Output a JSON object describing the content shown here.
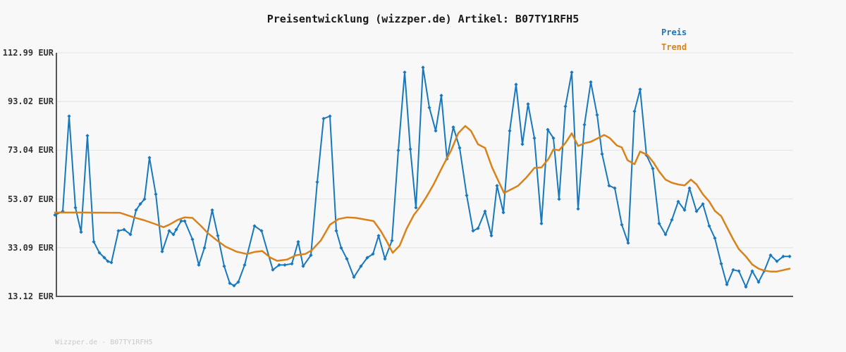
{
  "header": {
    "title": "Preisentwicklung (wizzper.de) Artikel: B07TY1RFH5"
  },
  "legend": {
    "preis": "Preis",
    "trend": "Trend"
  },
  "footer": {
    "watermark": "Wizzper.de - B07TY1RFH5"
  },
  "colors": {
    "preis": "#1878be",
    "trend": "#d9821a",
    "axis": "#58585a",
    "grid": "#e7e7e7",
    "legend_preis_text": "#1777c2",
    "legend_trend_text": "#d9821a"
  },
  "chart_data": {
    "type": "line",
    "title": "Preisentwicklung (wizzper.de) Artikel: B07TY1RFH5",
    "xlabel": "",
    "ylabel": "",
    "x_unit": "px (no x-axis labels shown)",
    "y_unit": "EUR",
    "ylim": [
      13.12,
      112.99
    ],
    "grid": true,
    "legend_position": "top-right",
    "yticks": [
      {
        "label": "112.99 EUR",
        "value": 112.99
      },
      {
        "label": "93.02 EUR",
        "value": 93.02
      },
      {
        "label": "73.04 EUR",
        "value": 73.04
      },
      {
        "label": "53.07 EUR",
        "value": 53.07
      },
      {
        "label": "33.09 EUR",
        "value": 33.09
      },
      {
        "label": "13.12 EUR",
        "value": 13.12
      }
    ],
    "series": [
      {
        "name": "Preis",
        "color": "#1878be",
        "markers": true,
        "points": [
          [
            78,
            46.5
          ],
          [
            89,
            48
          ],
          [
            98,
            87
          ],
          [
            107,
            49.5
          ],
          [
            115,
            39.5
          ],
          [
            124,
            79
          ],
          [
            133,
            35.5
          ],
          [
            141,
            31
          ],
          [
            148,
            29
          ],
          [
            153,
            27.5
          ],
          [
            158,
            27
          ],
          [
            168,
            40
          ],
          [
            176,
            40.5
          ],
          [
            185,
            38.5
          ],
          [
            193,
            48.5
          ],
          [
            199,
            51
          ],
          [
            205,
            53
          ],
          [
            212,
            70
          ],
          [
            221,
            55
          ],
          [
            230,
            31.5
          ],
          [
            240,
            40
          ],
          [
            246,
            38.5
          ],
          [
            250,
            40.5
          ],
          [
            257,
            44
          ],
          [
            262,
            44
          ],
          [
            273,
            36.5
          ],
          [
            282,
            26
          ],
          [
            290,
            33
          ],
          [
            301,
            48.5
          ],
          [
            309,
            38
          ],
          [
            318,
            25.5
          ],
          [
            326,
            18.5
          ],
          [
            332,
            17.5
          ],
          [
            338,
            19
          ],
          [
            347,
            26
          ],
          [
            361,
            42
          ],
          [
            371,
            40
          ],
          [
            387,
            24
          ],
          [
            396,
            26
          ],
          [
            404,
            26
          ],
          [
            414,
            26.5
          ],
          [
            423,
            35.5
          ],
          [
            430,
            25.5
          ],
          [
            441,
            30
          ],
          [
            450,
            60
          ],
          [
            459,
            86
          ],
          [
            468,
            87
          ],
          [
            477,
            40
          ],
          [
            484,
            33
          ],
          [
            492,
            28.5
          ],
          [
            502,
            21
          ],
          [
            512,
            25.5
          ],
          [
            521,
            29
          ],
          [
            529,
            30.5
          ],
          [
            537,
            38
          ],
          [
            546,
            28.5
          ],
          [
            556,
            36
          ],
          [
            565,
            73
          ],
          [
            574,
            105
          ],
          [
            582,
            73.5
          ],
          [
            590,
            49.5
          ],
          [
            600,
            107
          ],
          [
            609,
            90.5
          ],
          [
            618,
            81
          ],
          [
            626,
            95.5
          ],
          [
            634,
            69.5
          ],
          [
            643,
            82.5
          ],
          [
            652,
            74
          ],
          [
            662,
            54.5
          ],
          [
            671,
            40
          ],
          [
            678,
            41
          ],
          [
            688,
            48
          ],
          [
            697,
            38
          ],
          [
            705,
            58.5
          ],
          [
            714,
            47.5
          ],
          [
            723,
            81
          ],
          [
            732,
            100
          ],
          [
            741,
            75.5
          ],
          [
            749,
            92
          ],
          [
            758,
            78
          ],
          [
            768,
            43
          ],
          [
            777,
            81.5
          ],
          [
            785,
            78
          ],
          [
            793,
            53
          ],
          [
            802,
            91
          ],
          [
            811,
            105
          ],
          [
            820,
            49
          ],
          [
            829,
            83.5
          ],
          [
            838,
            101
          ],
          [
            847,
            87.5
          ],
          [
            854,
            71.5
          ],
          [
            864,
            58.5
          ],
          [
            872,
            57.5
          ],
          [
            882,
            42.5
          ],
          [
            891,
            35
          ],
          [
            900,
            89
          ],
          [
            908,
            98
          ],
          [
            917,
            71
          ],
          [
            926,
            65.5
          ],
          [
            935,
            43
          ],
          [
            944,
            38.5
          ],
          [
            953,
            44.5
          ],
          [
            962,
            52
          ],
          [
            971,
            48.5
          ],
          [
            978,
            57.5
          ],
          [
            988,
            48
          ],
          [
            997,
            51
          ],
          [
            1006,
            42
          ],
          [
            1014,
            37
          ],
          [
            1023,
            26.5
          ],
          [
            1031,
            18
          ],
          [
            1040,
            24
          ],
          [
            1048,
            23.5
          ],
          [
            1058,
            17
          ],
          [
            1067,
            23.5
          ],
          [
            1076,
            19
          ],
          [
            1084,
            23.5
          ],
          [
            1093,
            30
          ],
          [
            1102,
            27.5
          ],
          [
            1111,
            29.5
          ],
          [
            1120,
            29.5
          ]
        ]
      },
      {
        "name": "Trend",
        "color": "#d9821a",
        "markers": false,
        "points": [
          [
            78,
            47.5
          ],
          [
            120,
            47.5
          ],
          [
            170,
            47.4
          ],
          [
            190,
            45.5
          ],
          [
            205,
            44.3
          ],
          [
            218,
            43
          ],
          [
            232,
            41.5
          ],
          [
            240,
            42.5
          ],
          [
            252,
            44.5
          ],
          [
            262,
            45.5
          ],
          [
            273,
            45.3
          ],
          [
            285,
            42
          ],
          [
            295,
            39
          ],
          [
            308,
            36
          ],
          [
            320,
            33.5
          ],
          [
            335,
            31.5
          ],
          [
            350,
            30.5
          ],
          [
            362,
            31.4
          ],
          [
            372,
            31.7
          ],
          [
            383,
            29.1
          ],
          [
            393,
            27.7
          ],
          [
            407,
            28.2
          ],
          [
            420,
            30
          ],
          [
            433,
            30.5
          ],
          [
            442,
            32
          ],
          [
            455,
            36
          ],
          [
            468,
            42.5
          ],
          [
            480,
            44.8
          ],
          [
            492,
            45.5
          ],
          [
            505,
            45.3
          ],
          [
            518,
            44.6
          ],
          [
            530,
            44
          ],
          [
            540,
            40
          ],
          [
            548,
            36
          ],
          [
            557,
            31
          ],
          [
            567,
            34
          ],
          [
            577,
            41
          ],
          [
            587,
            46.5
          ],
          [
            595,
            49.5
          ],
          [
            605,
            54
          ],
          [
            615,
            59
          ],
          [
            628,
            66.5
          ],
          [
            640,
            73
          ],
          [
            650,
            80
          ],
          [
            660,
            83
          ],
          [
            668,
            81
          ],
          [
            678,
            75.5
          ],
          [
            688,
            74
          ],
          [
            698,
            66
          ],
          [
            706,
            61
          ],
          [
            715,
            55.5
          ],
          [
            725,
            57
          ],
          [
            735,
            58.5
          ],
          [
            747,
            62
          ],
          [
            758,
            65.8
          ],
          [
            768,
            66
          ],
          [
            778,
            69.5
          ],
          [
            785,
            73.4
          ],
          [
            793,
            73
          ],
          [
            802,
            76
          ],
          [
            811,
            80
          ],
          [
            820,
            74.8
          ],
          [
            830,
            76
          ],
          [
            838,
            76.5
          ],
          [
            847,
            77.8
          ],
          [
            857,
            79.3
          ],
          [
            865,
            78
          ],
          [
            875,
            75
          ],
          [
            882,
            74.2
          ],
          [
            890,
            69
          ],
          [
            900,
            67.3
          ],
          [
            908,
            72.5
          ],
          [
            918,
            71.2
          ],
          [
            927,
            68
          ],
          [
            935,
            64.3
          ],
          [
            944,
            61
          ],
          [
            953,
            59.7
          ],
          [
            962,
            59
          ],
          [
            971,
            58.6
          ],
          [
            980,
            61
          ],
          [
            988,
            59
          ],
          [
            997,
            55
          ],
          [
            1006,
            52
          ],
          [
            1014,
            48.2
          ],
          [
            1023,
            46
          ],
          [
            1031,
            41.5
          ],
          [
            1040,
            36.5
          ],
          [
            1048,
            32.5
          ],
          [
            1058,
            29.5
          ],
          [
            1067,
            26.2
          ],
          [
            1076,
            24.5
          ],
          [
            1084,
            23.7
          ],
          [
            1093,
            23.3
          ],
          [
            1102,
            23.3
          ],
          [
            1111,
            23.9
          ],
          [
            1120,
            24.5
          ]
        ]
      }
    ]
  }
}
